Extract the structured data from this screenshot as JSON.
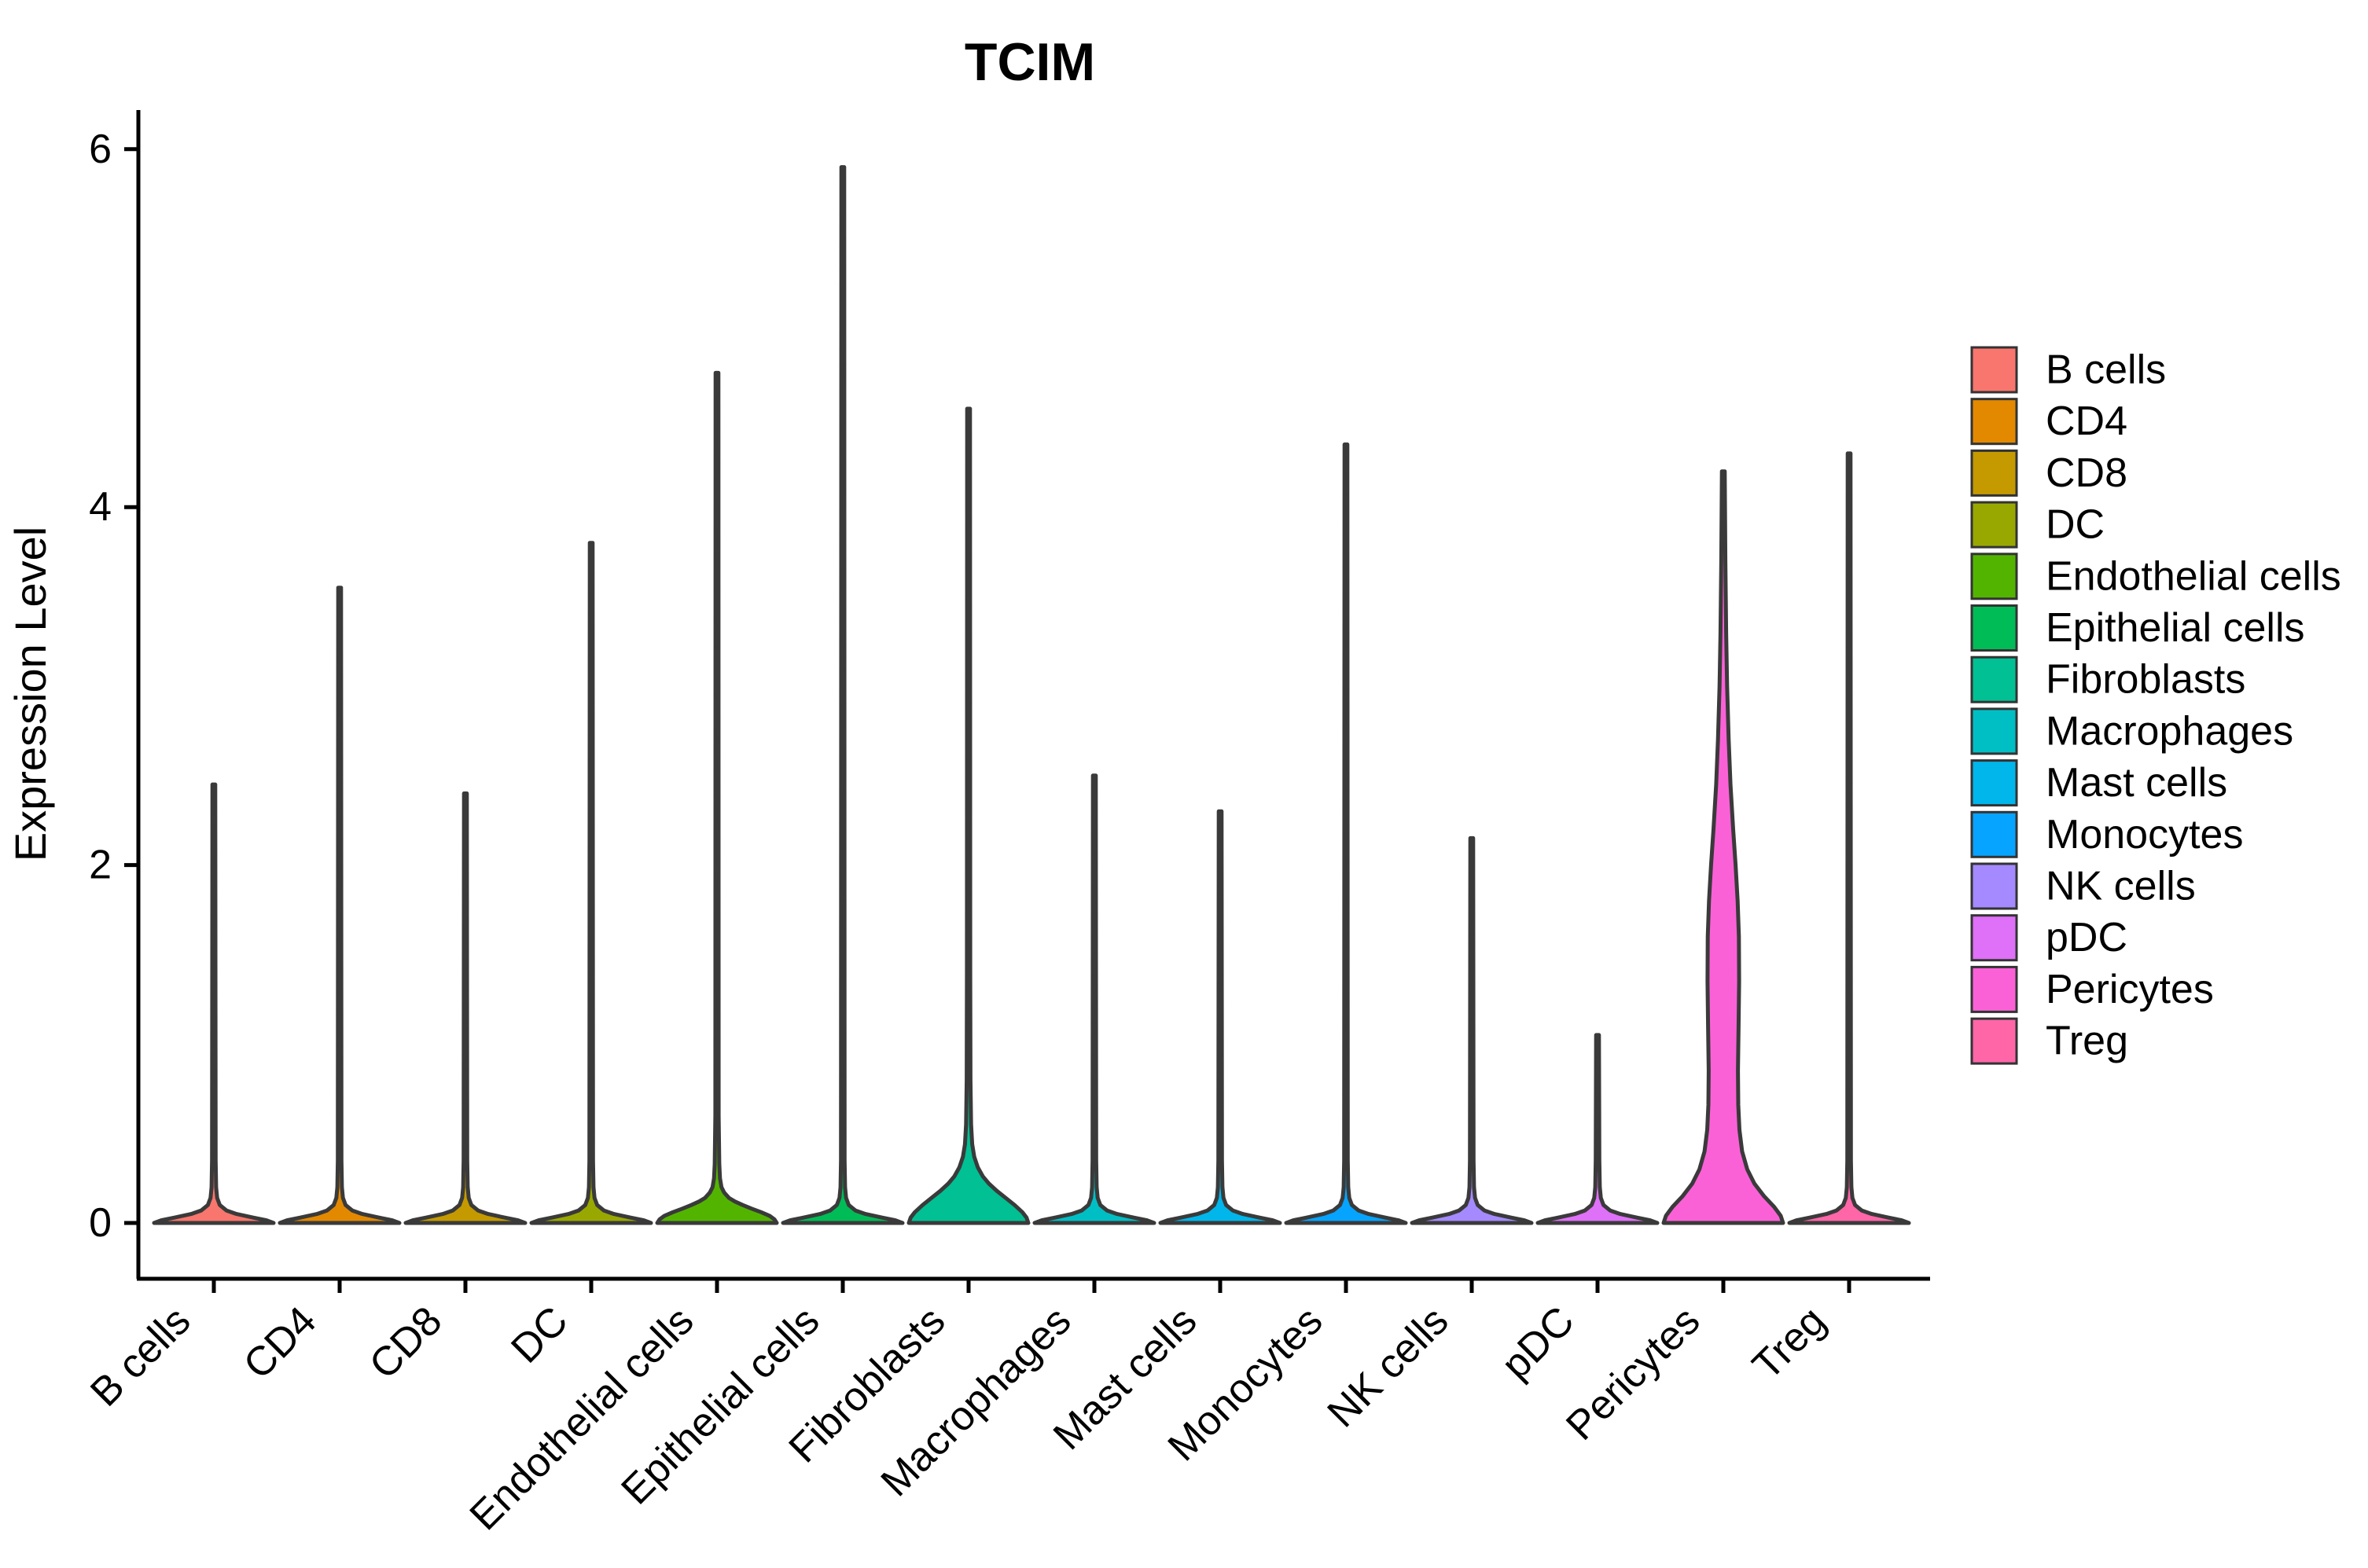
{
  "figure": {
    "title": "TCIM",
    "y_axis": {
      "label": "Expression Level",
      "tick_labels": [
        "0",
        "2",
        "4",
        "6"
      ],
      "tick_values": [
        0,
        2,
        4,
        6
      ]
    },
    "x_axis": {
      "tick_labels": [
        "B cells",
        "CD4",
        "CD8",
        "DC",
        "Endothelial cells",
        "Epithelial cells",
        "Fibroblasts",
        "Macrophages",
        "Mast cells",
        "Monocytes",
        "NK cells",
        "pDC",
        "Pericytes",
        "Treg"
      ]
    },
    "legend": {
      "items": [
        {
          "label": "B cells",
          "color": "#F8766D"
        },
        {
          "label": "CD4",
          "color": "#E38900"
        },
        {
          "label": "CD8",
          "color": "#C49A00"
        },
        {
          "label": "DC",
          "color": "#99A800"
        },
        {
          "label": "Endothelial cells",
          "color": "#53B400"
        },
        {
          "label": "Epithelial cells",
          "color": "#00BC56"
        },
        {
          "label": "Fibroblasts",
          "color": "#00C094"
        },
        {
          "label": "Macrophages",
          "color": "#00BFC4"
        },
        {
          "label": "Mast cells",
          "color": "#00B6EB"
        },
        {
          "label": "Monocytes",
          "color": "#06A4FF"
        },
        {
          "label": "NK cells",
          "color": "#A58AFF"
        },
        {
          "label": "pDC",
          "color": "#DF70F8"
        },
        {
          "label": "Pericytes",
          "color": "#FB61D7"
        },
        {
          "label": "Treg",
          "color": "#FF66A8"
        }
      ]
    }
  },
  "chart_data": {
    "type": "violin",
    "title": "TCIM",
    "xlabel": "",
    "ylabel": "Expression Level",
    "ylim": [
      0,
      6.2
    ],
    "y_ticks": [
      0,
      2,
      4,
      6
    ],
    "grid": false,
    "legend_position": "right",
    "categories": [
      "B cells",
      "CD4",
      "CD8",
      "DC",
      "Endothelial cells",
      "Epithelial cells",
      "Fibroblasts",
      "Macrophages",
      "Mast cells",
      "Monocytes",
      "NK cells",
      "pDC",
      "Pericytes",
      "Treg"
    ],
    "series": [
      {
        "name": "B cells",
        "color": "#F8766D",
        "max_expression": 2.45,
        "body": "flat"
      },
      {
        "name": "CD4",
        "color": "#E38900",
        "max_expression": 3.55,
        "body": "flat"
      },
      {
        "name": "CD8",
        "color": "#C49A00",
        "max_expression": 2.4,
        "body": "flat"
      },
      {
        "name": "DC",
        "color": "#99A800",
        "max_expression": 3.8,
        "body": "flat"
      },
      {
        "name": "Endothelial cells",
        "color": "#53B400",
        "max_expression": 4.75,
        "body": "low_bell"
      },
      {
        "name": "Epithelial cells",
        "color": "#00BC56",
        "max_expression": 5.9,
        "body": "flat"
      },
      {
        "name": "Fibroblasts",
        "color": "#00C094",
        "max_expression": 4.55,
        "body": "bell"
      },
      {
        "name": "Macrophages",
        "color": "#00BFC4",
        "max_expression": 2.5,
        "body": "flat"
      },
      {
        "name": "Mast cells",
        "color": "#00B6EB",
        "max_expression": 2.3,
        "body": "flat"
      },
      {
        "name": "Monocytes",
        "color": "#06A4FF",
        "max_expression": 4.35,
        "body": "flat"
      },
      {
        "name": "NK cells",
        "color": "#A58AFF",
        "max_expression": 2.15,
        "body": "flat"
      },
      {
        "name": "pDC",
        "color": "#DF70F8",
        "max_expression": 1.05,
        "body": "flat"
      },
      {
        "name": "Pericytes",
        "color": "#FB61D7",
        "max_expression": 4.2,
        "body": "wide_column"
      },
      {
        "name": "Treg",
        "color": "#FF66A8",
        "max_expression": 4.3,
        "body": "flat"
      }
    ],
    "profiles": {
      "flat": [
        [
          0,
          1.0
        ],
        [
          0.015,
          0.88
        ],
        [
          0.03,
          0.66
        ],
        [
          0.05,
          0.38
        ],
        [
          0.07,
          0.21
        ],
        [
          0.1,
          0.1
        ],
        [
          0.14,
          0.055
        ],
        [
          0.2,
          0.038
        ],
        [
          0.35,
          0.03
        ]
      ],
      "low_bell": [
        [
          0,
          1.0
        ],
        [
          0.02,
          0.96
        ],
        [
          0.04,
          0.88
        ],
        [
          0.06,
          0.74
        ],
        [
          0.08,
          0.58
        ],
        [
          0.1,
          0.43
        ],
        [
          0.12,
          0.3
        ],
        [
          0.14,
          0.2
        ],
        [
          0.17,
          0.12
        ],
        [
          0.2,
          0.075
        ],
        [
          0.25,
          0.05
        ],
        [
          0.33,
          0.038
        ],
        [
          0.6,
          0.028
        ]
      ],
      "bell": [
        [
          0,
          1.0
        ],
        [
          0.03,
          0.97
        ],
        [
          0.06,
          0.9
        ],
        [
          0.1,
          0.77
        ],
        [
          0.14,
          0.62
        ],
        [
          0.18,
          0.47
        ],
        [
          0.22,
          0.34
        ],
        [
          0.26,
          0.24
        ],
        [
          0.31,
          0.155
        ],
        [
          0.37,
          0.095
        ],
        [
          0.44,
          0.06
        ],
        [
          0.55,
          0.042
        ],
        [
          0.8,
          0.032
        ],
        [
          1.4,
          0.027
        ]
      ],
      "wide_column": [
        [
          0,
          1.0
        ],
        [
          0.04,
          0.96
        ],
        [
          0.09,
          0.85
        ],
        [
          0.15,
          0.68
        ],
        [
          0.22,
          0.52
        ],
        [
          0.3,
          0.4
        ],
        [
          0.4,
          0.315
        ],
        [
          0.52,
          0.27
        ],
        [
          0.66,
          0.25
        ],
        [
          0.85,
          0.245
        ],
        [
          1.1,
          0.255
        ],
        [
          1.35,
          0.265
        ],
        [
          1.6,
          0.26
        ],
        [
          1.8,
          0.24
        ],
        [
          2.0,
          0.205
        ],
        [
          2.2,
          0.165
        ],
        [
          2.45,
          0.12
        ],
        [
          2.7,
          0.09
        ],
        [
          3.0,
          0.063
        ],
        [
          3.3,
          0.047
        ],
        [
          3.7,
          0.034
        ]
      ]
    },
    "style": {
      "outline_color": "#3A3A3A",
      "axis_color": "#000000",
      "background": "#FFFFFF"
    }
  },
  "layout_hint": {
    "value_axis": "0 at y=1556, 227.7 px per unit",
    "category_axis": "first center x=272, step 160"
  }
}
